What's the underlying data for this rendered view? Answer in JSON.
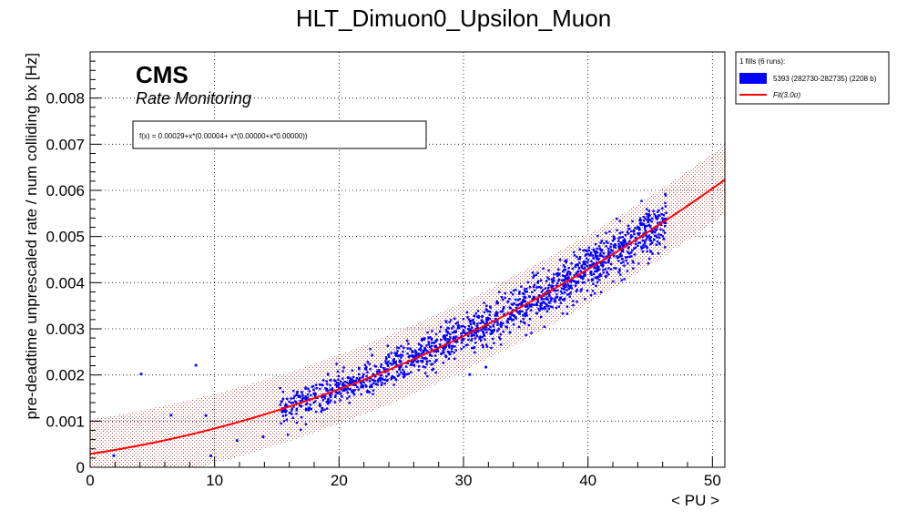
{
  "chart_data": {
    "type": "scatter",
    "title": "HLT_Dimuon0_Upsilon_Muon",
    "xlabel": "< PU >",
    "ylabel": "pre-deadtime unprescaled rate / num colliding bx [Hz]",
    "xlim": [
      0,
      51
    ],
    "ylim": [
      0,
      0.009
    ],
    "xticks": [
      "0",
      "10",
      "20",
      "30",
      "40",
      "50"
    ],
    "yticks": [
      "0",
      "0.001",
      "0.002",
      "0.003",
      "0.004",
      "0.005",
      "0.006",
      "0.007",
      "0.008"
    ],
    "grid": true,
    "legend_position": "right, outside plot",
    "cms_label": "CMS",
    "cms_sublabel": "Rate Monitoring",
    "fit_formula": "f(x) = 0.00029+x*(0.00004+ x*(0.00000+x*0.00000))",
    "fit_coefficients": [
      0.00029,
      4e-05,
      1.5e-06
    ],
    "band_sigma": 3.0,
    "band_halfwidth": 0.00075,
    "legend": {
      "header": "1 fills (6 runs):",
      "entries": [
        {
          "label": "5393 (282730-282735) (2208 b)",
          "color": "#0000ff",
          "kind": "box"
        },
        {
          "label": "Fit(3.0σ)",
          "color": "#ff0000",
          "kind": "line"
        }
      ]
    },
    "series": [
      {
        "name": "5393 (282730-282735) (2208 b)",
        "color": "#0000ff",
        "main_cloud": {
          "x_range": [
            15.2,
            46.3
          ],
          "point_count": 1600,
          "y_model": "fit"
        },
        "outliers": [
          {
            "x": 4.1,
            "y": 0.00202
          },
          {
            "x": 8.5,
            "y": 0.00221
          },
          {
            "x": 9.3,
            "y": 0.00112
          },
          {
            "x": 9.7,
            "y": 0.00025
          },
          {
            "x": 6.5,
            "y": 0.00113
          },
          {
            "x": 11.8,
            "y": 0.00058
          },
          {
            "x": 13.9,
            "y": 0.00066
          },
          {
            "x": 1.9,
            "y": 0.00025
          },
          {
            "x": 30.5,
            "y": 0.00201
          },
          {
            "x": 31.8,
            "y": 0.00217
          },
          {
            "x": 46.1,
            "y": 0.00495
          },
          {
            "x": 45.6,
            "y": 0.00542
          }
        ]
      }
    ]
  }
}
